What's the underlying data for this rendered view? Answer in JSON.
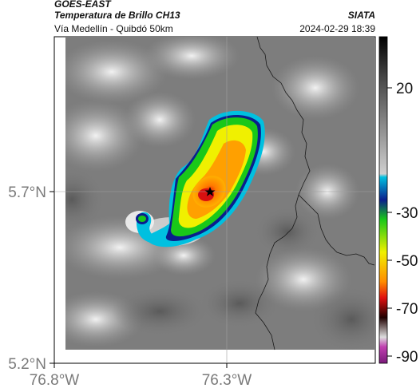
{
  "header": {
    "satellite": "GOES-EAST",
    "product": "Temperatura de Brillo CH13",
    "region": "Vía Medellín - Quibdó 50km",
    "source": "SIATA",
    "datetime": "2024-02-29 18:39"
  },
  "map": {
    "lat_labels": [
      "5.7°N",
      "5.2°N"
    ],
    "lon_labels": [
      "76.8°W",
      "76.3°W"
    ],
    "station_marker": "star-icon"
  },
  "colorbar": {
    "tick_labels": [
      "20",
      "-30",
      "-50",
      "-70",
      "-90"
    ],
    "colors": {
      "warm_top": "#000000",
      "gray": "#8c8c8c",
      "cyan": "#00c0e0",
      "blue": "#0a1e8c",
      "green": "#19c819",
      "yellow": "#f0f000",
      "orange": "#ff8c00",
      "red": "#e01010",
      "dark": "#200000",
      "magenta": "#c040b0"
    }
  }
}
